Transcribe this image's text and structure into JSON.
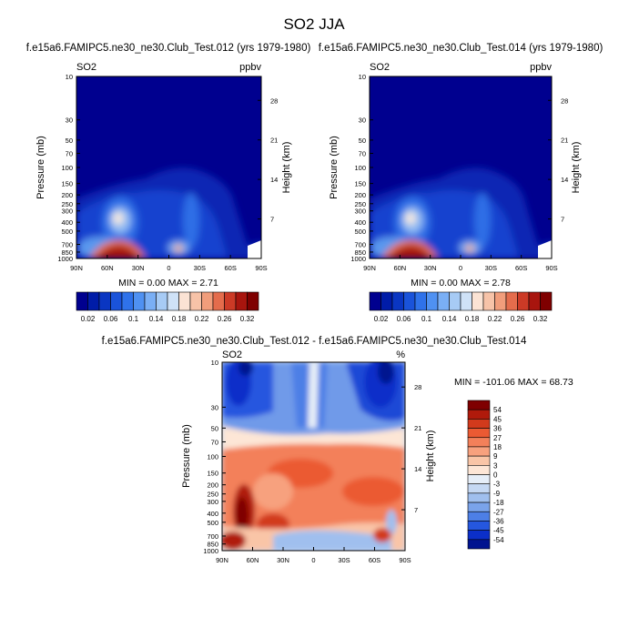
{
  "figure": {
    "title": "SO2 JJA"
  },
  "chart_data": [
    {
      "type": "heatmap",
      "title": "f.e15a6.FAMIPC5.ne30_ne30.Club_Test.012 (yrs 1979-1980)",
      "left_label": "SO2",
      "right_label": "ppbv",
      "ylabel": "Pressure (mb)",
      "y2label": "Height (km)",
      "x_ticks": [
        "90N",
        "60N",
        "30N",
        "0",
        "30S",
        "60S",
        "90S"
      ],
      "y_ticks": [
        "10",
        "30",
        "50",
        "70",
        "100",
        "150",
        "200",
        "250",
        "300",
        "400",
        "500",
        "700",
        "850",
        "1000"
      ],
      "y2_ticks": [
        "28",
        "21",
        "14",
        "7"
      ],
      "stats": "MIN =  0.00  MAX =  2.71",
      "colorbar_labels": [
        "0.02",
        "0.06",
        "0.1",
        "0.14",
        "0.18",
        "0.22",
        "0.26",
        "0.32"
      ],
      "colorbar_colors": [
        "#00008f",
        "#001ca8",
        "#0a36c2",
        "#1a53da",
        "#2f72ea",
        "#4f91f2",
        "#7aaff5",
        "#a7cbf5",
        "#cfe2f7",
        "#fbe3d4",
        "#f7c3a8",
        "#f19d7b",
        "#e46c4c",
        "#cc3a26",
        "#a8150e",
        "#7f0000"
      ],
      "max_value": 2.71
    },
    {
      "type": "heatmap",
      "title": "f.e15a6.FAMIPC5.ne30_ne30.Club_Test.014 (yrs 1979-1980)",
      "left_label": "SO2",
      "right_label": "ppbv",
      "ylabel": "Pressure (mb)",
      "y2label": "Height (km)",
      "x_ticks": [
        "90N",
        "60N",
        "30N",
        "0",
        "30S",
        "60S",
        "90S"
      ],
      "y_ticks": [
        "10",
        "30",
        "50",
        "70",
        "100",
        "150",
        "200",
        "250",
        "300",
        "400",
        "500",
        "700",
        "850",
        "1000"
      ],
      "y2_ticks": [
        "28",
        "21",
        "14",
        "7"
      ],
      "stats": "MIN =  0.00  MAX =  2.78",
      "colorbar_labels": [
        "0.02",
        "0.06",
        "0.1",
        "0.14",
        "0.18",
        "0.22",
        "0.26",
        "0.32"
      ],
      "colorbar_colors": [
        "#00008f",
        "#001ca8",
        "#0a36c2",
        "#1a53da",
        "#2f72ea",
        "#4f91f2",
        "#7aaff5",
        "#a7cbf5",
        "#cfe2f7",
        "#fbe3d4",
        "#f7c3a8",
        "#f19d7b",
        "#e46c4c",
        "#cc3a26",
        "#a8150e",
        "#7f0000"
      ],
      "max_value": 2.78
    },
    {
      "type": "heatmap",
      "title": "f.e15a6.FAMIPC5.ne30_ne30.Club_Test.012 - f.e15a6.FAMIPC5.ne30_ne30.Club_Test.014",
      "left_label": "SO2",
      "right_label": "%",
      "ylabel": "Pressure (mb)",
      "y2label": "Height (km)",
      "x_ticks": [
        "90N",
        "60N",
        "30N",
        "0",
        "30S",
        "60S",
        "90S"
      ],
      "y_ticks": [
        "10",
        "30",
        "50",
        "70",
        "100",
        "150",
        "200",
        "250",
        "300",
        "400",
        "500",
        "700",
        "850",
        "1000"
      ],
      "y2_ticks": [
        "28",
        "21",
        "14",
        "7"
      ],
      "stats": "MIN = -101.06  MAX =  68.73",
      "colorbar_labels": [
        "54",
        "45",
        "36",
        "27",
        "18",
        "9",
        "3",
        "0",
        "-3",
        "-9",
        "-18",
        "-27",
        "-36",
        "-45",
        "-54"
      ],
      "colorbar_colors": [
        "#7f0000",
        "#b01a0b",
        "#d23a1c",
        "#eb5a33",
        "#f3805a",
        "#f7a17e",
        "#f9c5a7",
        "#fde6d6",
        "#e6eef8",
        "#c5d8f3",
        "#a0bfee",
        "#7aa3ea",
        "#4d7fe6",
        "#2557df",
        "#0b2fc9",
        "#00138f"
      ],
      "min_value": -101.06,
      "max_value": 68.73
    }
  ]
}
